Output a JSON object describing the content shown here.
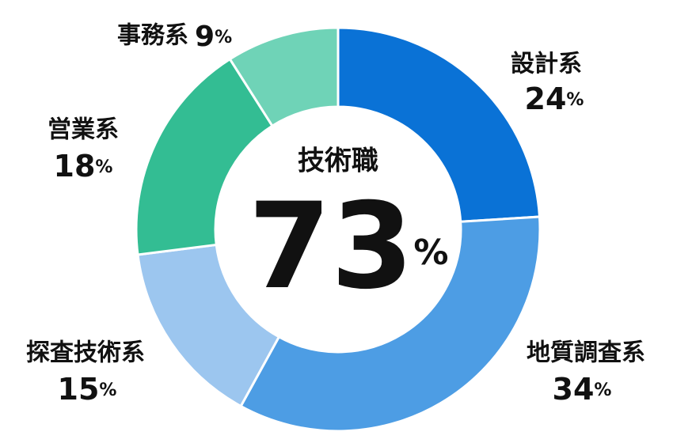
{
  "chart_data": {
    "type": "donut",
    "categories": [
      "設計系",
      "地質調査系",
      "探査技術系",
      "営業系",
      "事務系"
    ],
    "values": [
      24,
      34,
      15,
      18,
      9
    ],
    "value_labels": [
      "24%",
      "34%",
      "15%",
      "18%",
      "9%"
    ],
    "colors": [
      "#0a72d6",
      "#4d9de4",
      "#9cc6ef",
      "#33bd93",
      "#6fd3b7"
    ],
    "center_label": "技術職",
    "center_text": "73%"
  }
}
